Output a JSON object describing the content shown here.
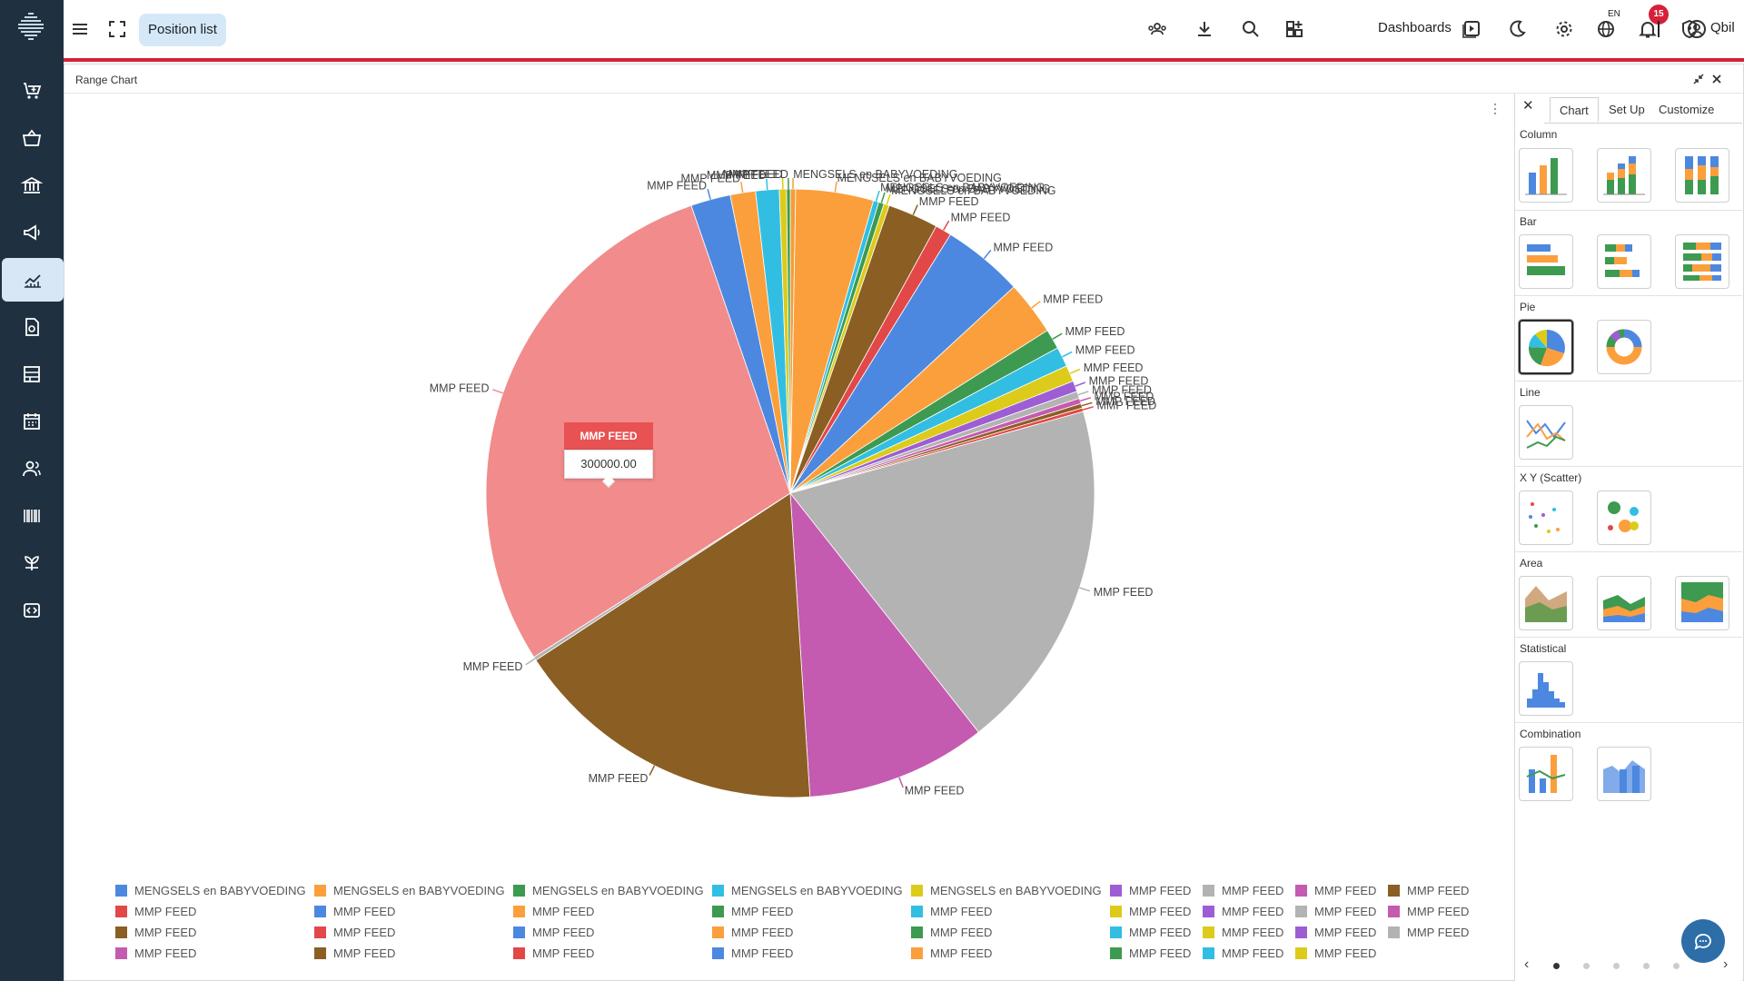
{
  "topbar": {
    "position_list_label": "Position list",
    "dashboards_label": "Dashboards",
    "language": "EN",
    "notification_count": "15",
    "user_name": "Qbil"
  },
  "panel": {
    "title": "Range Chart"
  },
  "tooltip": {
    "label": "MMP FEED",
    "value": "300000.00"
  },
  "side_panel": {
    "tabs": [
      "Chart",
      "Set Up",
      "Customize"
    ],
    "active_tab": "Chart",
    "sections": [
      "Column",
      "Bar",
      "Pie",
      "Line",
      "X Y (Scatter)",
      "Area",
      "Statistical",
      "Combination"
    ]
  },
  "colors": {
    "sidebar_bg": "#1f3141",
    "accent_red": "#d6203a",
    "active_nav_bg": "#d7e7f5"
  },
  "chart_data": {
    "type": "pie",
    "slices": [
      {
        "name": "MENGSELS en BABYVOEDING",
        "value": 0.3,
        "color": "#f49d37"
      },
      {
        "name": "MENGSELS en BABYVOEDING",
        "value": 4.3,
        "color": "#fb9f3d"
      },
      {
        "name": "MENGSELS en BABYVOEDING",
        "value": 0.3,
        "color": "#32bee3"
      },
      {
        "name": "MENGSELS en BABYVOEDING",
        "value": 0.3,
        "color": "#3d9a50"
      },
      {
        "name": "MENGSELS en BABYVOEDING",
        "value": 0.3,
        "color": "#dccb1a"
      },
      {
        "name": "MMP FEED",
        "value": 2.8,
        "color": "#8b5e24"
      },
      {
        "name": "MMP FEED",
        "value": 0.9,
        "color": "#e24848"
      },
      {
        "name": "MMP FEED",
        "value": 4.5,
        "color": "#4d88e0"
      },
      {
        "name": "MMP FEED",
        "value": 3.0,
        "color": "#fb9f3d"
      },
      {
        "name": "MMP FEED",
        "value": 1.1,
        "color": "#3d9a50"
      },
      {
        "name": "MMP FEED",
        "value": 1.1,
        "color": "#32bee3"
      },
      {
        "name": "MMP FEED",
        "value": 0.9,
        "color": "#dccb1a"
      },
      {
        "name": "MMP FEED",
        "value": 0.6,
        "color": "#9d5ed4"
      },
      {
        "name": "MMP FEED",
        "value": 0.4,
        "color": "#b3b3b3"
      },
      {
        "name": "MMP FEED",
        "value": 0.3,
        "color": "#c45bb0"
      },
      {
        "name": "MMP FEED",
        "value": 0.25,
        "color": "#8b5e24"
      },
      {
        "name": "MMP FEED",
        "value": 0.2,
        "color": "#e24848"
      },
      {
        "name": "MMP FEED",
        "value": 19.5,
        "color": "#b3b3b3"
      },
      {
        "name": "MMP FEED",
        "value": 10.0,
        "color": "#c45bb0"
      },
      {
        "name": "MMP FEED",
        "value": 17.5,
        "color": "#8b5e24"
      },
      {
        "name": "MMP FEED",
        "value": 0.2,
        "color": "#b3b3b3"
      },
      {
        "name": "MMP FEED",
        "value": 30.0,
        "color": "#f28b8b"
      },
      {
        "name": "MMP FEED",
        "value": 2.2,
        "color": "#4d88e0"
      },
      {
        "name": "MMP FEED",
        "value": 1.4,
        "color": "#fb9f3d"
      },
      {
        "name": "MMP FEED",
        "value": 1.3,
        "color": "#32bee3"
      },
      {
        "name": "MMP FEED",
        "value": 0.4,
        "color": "#dccb1a"
      },
      {
        "name": "MMP FEED",
        "value": 0.2,
        "color": "#3d9a50"
      }
    ],
    "legend": [
      [
        "MENGSELS en BABYVOEDING",
        "#4d88e0"
      ],
      [
        "MMP FEED",
        "#e24848"
      ],
      [
        "MMP FEED",
        "#8b5e24"
      ],
      [
        "MMP FEED",
        "#c45bb0"
      ],
      [
        "MENGSELS en BABYVOEDING",
        "#fb9f3d"
      ],
      [
        "MMP FEED",
        "#4d88e0"
      ],
      [
        "MMP FEED",
        "#e24848"
      ],
      [
        "MMP FEED",
        "#8b5e24"
      ],
      [
        "MENGSELS en BABYVOEDING",
        "#3d9a50"
      ],
      [
        "MMP FEED",
        "#fb9f3d"
      ],
      [
        "MMP FEED",
        "#4d88e0"
      ],
      [
        "MMP FEED",
        "#e24848"
      ],
      [
        "MENGSELS en BABYVOEDING",
        "#32bee3"
      ],
      [
        "MMP FEED",
        "#3d9a50"
      ],
      [
        "MMP FEED",
        "#fb9f3d"
      ],
      [
        "MMP FEED",
        "#4d88e0"
      ],
      [
        "MENGSELS en BABYVOEDING",
        "#dccb1a"
      ],
      [
        "MMP FEED",
        "#32bee3"
      ],
      [
        "MMP FEED",
        "#3d9a50"
      ],
      [
        "MMP FEED",
        "#fb9f3d"
      ],
      [
        "MMP FEED",
        "#9d5ed4"
      ],
      [
        "MMP FEED",
        "#dccb1a"
      ],
      [
        "MMP FEED",
        "#32bee3"
      ],
      [
        "MMP FEED",
        "#3d9a50"
      ],
      [
        "MMP FEED",
        "#b3b3b3"
      ],
      [
        "MMP FEED",
        "#9d5ed4"
      ],
      [
        "MMP FEED",
        "#dccb1a"
      ],
      [
        "MMP FEED",
        "#32bee3"
      ],
      [
        "MMP FEED",
        "#c45bb0"
      ],
      [
        "MMP FEED",
        "#b3b3b3"
      ],
      [
        "MMP FEED",
        "#9d5ed4"
      ],
      [
        "MMP FEED",
        "#dccb1a"
      ],
      [
        "MMP FEED",
        "#8b5e24"
      ],
      [
        "MMP FEED",
        "#c45bb0"
      ],
      [
        "MMP FEED",
        "#b3b3b3"
      ]
    ]
  }
}
